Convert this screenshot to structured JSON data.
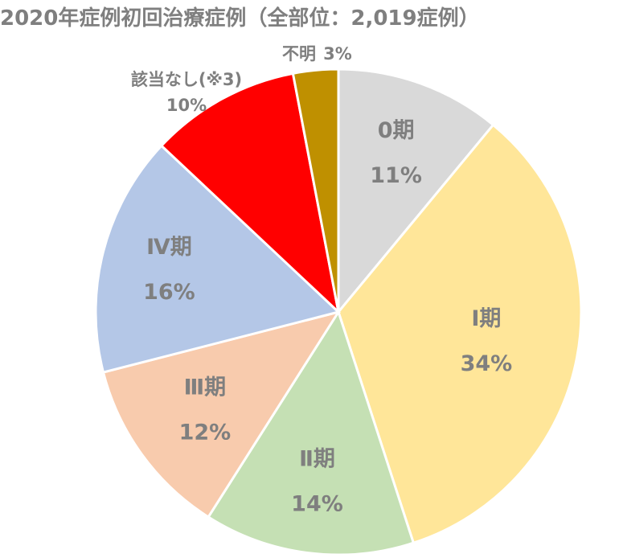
{
  "chart_data": {
    "type": "pie",
    "title": "2020年症例初回治療症例（全部位：2,019症例）",
    "start_angle_deg": 0,
    "direction": "clockwise",
    "slices": [
      {
        "name": "0期",
        "value": 11,
        "label": "11%",
        "color": "#d9d9d9"
      },
      {
        "name": "Ⅰ期",
        "value": 34,
        "label": "34%",
        "color": "#ffe699"
      },
      {
        "name": "Ⅱ期",
        "value": 14,
        "label": "14%",
        "color": "#c5e0b4"
      },
      {
        "name": "Ⅲ期",
        "value": 12,
        "label": "12%",
        "color": "#f8cbad"
      },
      {
        "name": "Ⅳ期",
        "value": 16,
        "label": "16%",
        "color": "#b4c7e7"
      },
      {
        "name": "該当なし(※3)",
        "value": 10,
        "label": "10%",
        "color": "#ff0000"
      },
      {
        "name": "不明",
        "value": 3,
        "label": "3%",
        "color": "#bf9000"
      }
    ]
  }
}
